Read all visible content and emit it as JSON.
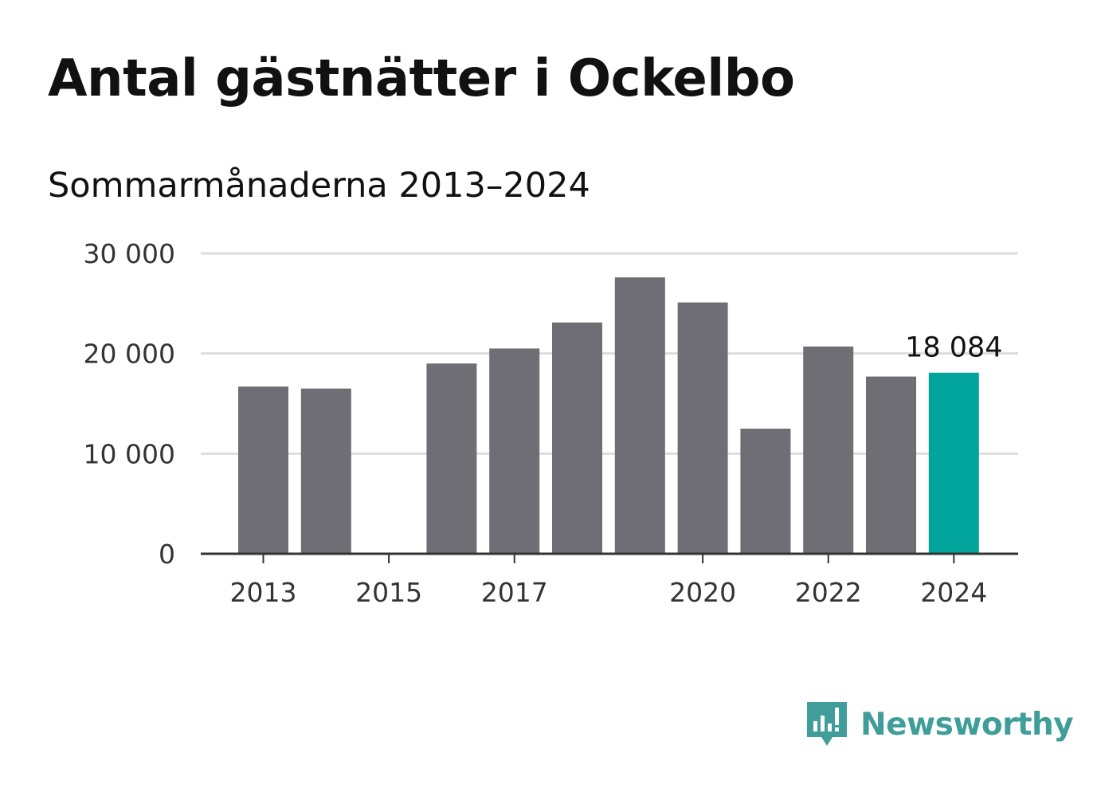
{
  "header": {
    "title": "Antal gästnätter i Ockelbo",
    "subtitle": "Sommarmånaderna 2013–2024"
  },
  "brand": {
    "name": "Newsworthy",
    "icon": "newsworthy-logo-icon",
    "color": "#3f9e9a"
  },
  "chart_data": {
    "type": "bar",
    "categories": [
      "2013",
      "2014",
      "2015",
      "2016",
      "2017",
      "2018",
      "2019",
      "2020",
      "2021",
      "2022",
      "2023",
      "2024"
    ],
    "values": [
      16700,
      16500,
      null,
      19000,
      20500,
      23100,
      27600,
      25100,
      12500,
      20700,
      17700,
      18084
    ],
    "x_tick_labels": [
      "2013",
      "2015",
      "2017",
      "2020",
      "2022",
      "2024"
    ],
    "y_ticks": [
      0,
      10000,
      20000,
      30000
    ],
    "y_tick_labels": [
      "0",
      "10 000",
      "20 000",
      "30 000"
    ],
    "ylim": [
      0,
      30000
    ],
    "highlight": {
      "category": "2024",
      "label": "18 084"
    },
    "grid": true,
    "colors": {
      "bar": "#6f6e74",
      "highlight": "#00a49a",
      "grid": "#dddddd",
      "axis": "#333333"
    }
  }
}
